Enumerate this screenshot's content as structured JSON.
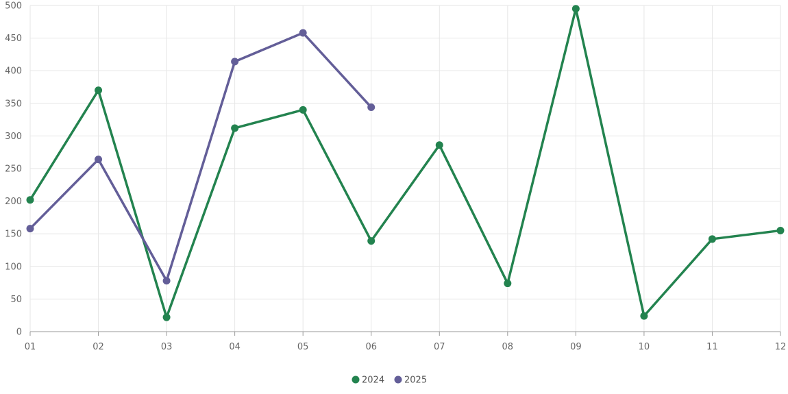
{
  "chart_data": {
    "type": "line",
    "x": [
      "01",
      "02",
      "03",
      "04",
      "05",
      "06",
      "07",
      "08",
      "09",
      "10",
      "11",
      "12"
    ],
    "ylim": [
      0,
      500
    ],
    "yticks": [
      0,
      50,
      100,
      150,
      200,
      250,
      300,
      350,
      400,
      450,
      500
    ],
    "grid": true,
    "legend_position": "bottom",
    "series": [
      {
        "name": "2024",
        "color": "#23834f",
        "values": [
          202,
          370,
          22,
          312,
          340,
          139,
          286,
          74,
          495,
          24,
          142,
          155
        ]
      },
      {
        "name": "2025",
        "color": "#635e98",
        "values": [
          158,
          264,
          78,
          414,
          458,
          344,
          null,
          null,
          null,
          null,
          null,
          null
        ]
      }
    ]
  }
}
